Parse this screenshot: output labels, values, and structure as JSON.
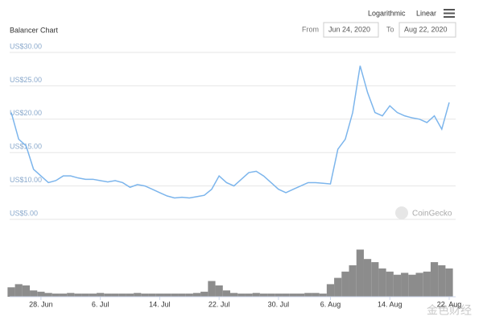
{
  "header": {
    "title": "Balancer Chart",
    "scale_options": [
      "Logarithmic",
      "Linear"
    ],
    "from_label": "From",
    "from_date": "Jun 24, 2020",
    "to_label": "To",
    "to_date": "Aug 22, 2020"
  },
  "watermarks": [
    "CoinGecko",
    "金色财经"
  ],
  "chart_data": [
    {
      "type": "line",
      "color": "#7cb5ec",
      "grid": true,
      "x": [
        "24. Jun",
        "25. Jun",
        "26. Jun",
        "27. Jun",
        "28. Jun",
        "29. Jun",
        "30. Jun",
        "1. Jul",
        "2. Jul",
        "3. Jul",
        "4. Jul",
        "5. Jul",
        "6. Jul",
        "7. Jul",
        "8. Jul",
        "9. Jul",
        "10. Jul",
        "11. Jul",
        "12. Jul",
        "13. Jul",
        "14. Jul",
        "15. Jul",
        "16. Jul",
        "17. Jul",
        "18. Jul",
        "19. Jul",
        "20. Jul",
        "21. Jul",
        "22. Jul",
        "23. Jul",
        "24. Jul",
        "25. Jul",
        "26. Jul",
        "27. Jul",
        "28. Jul",
        "29. Jul",
        "30. Jul",
        "31. Jul",
        "1. Aug",
        "2. Aug",
        "3. Aug",
        "4. Aug",
        "5. Aug",
        "6. Aug",
        "7. Aug",
        "8. Aug",
        "9. Aug",
        "10. Aug",
        "11. Aug",
        "12. Aug",
        "13. Aug",
        "14. Aug",
        "15. Aug",
        "16. Aug",
        "17. Aug",
        "18. Aug",
        "19. Aug",
        "20. Aug",
        "21. Aug",
        "22. Aug"
      ],
      "values": [
        21,
        17,
        16,
        12.5,
        11.5,
        10.5,
        10.8,
        11.5,
        11.5,
        11.2,
        11,
        11,
        10.8,
        10.6,
        10.8,
        10.5,
        9.8,
        10.2,
        10,
        9.5,
        9,
        8.5,
        8.2,
        8.3,
        8.2,
        8.4,
        8.6,
        9.5,
        11.5,
        10.5,
        10,
        11,
        12,
        12.2,
        11.5,
        10.5,
        9.5,
        9,
        9.5,
        10,
        10.5,
        10.5,
        10.4,
        10.3,
        15.5,
        17,
        21,
        28,
        24,
        21,
        20.5,
        22,
        21,
        20.5,
        20.2,
        20,
        19.5,
        20.5,
        18.5,
        22.5
      ],
      "ylim": [
        5,
        30
      ],
      "yticks": [
        {
          "value": 5,
          "label": "US$5.00"
        },
        {
          "value": 10,
          "label": "US$10.00"
        },
        {
          "value": 15,
          "label": "US$15.00"
        },
        {
          "value": 20,
          "label": "US$20.00"
        },
        {
          "value": 25,
          "label": "US$25.00"
        },
        {
          "value": 30,
          "label": "US$30.00"
        }
      ]
    },
    {
      "type": "bar",
      "color": "#8c8c8c",
      "ylim": [
        0,
        100
      ],
      "values": [
        15,
        20,
        18,
        10,
        8,
        6,
        5,
        5,
        6,
        5,
        5,
        5,
        6,
        5,
        5,
        5,
        5,
        6,
        5,
        5,
        5,
        5,
        5,
        5,
        5,
        6,
        8,
        25,
        18,
        10,
        6,
        5,
        5,
        6,
        5,
        5,
        5,
        5,
        5,
        5,
        6,
        6,
        5,
        20,
        30,
        40,
        50,
        75,
        60,
        55,
        45,
        40,
        35,
        38,
        35,
        38,
        40,
        55,
        50,
        45
      ],
      "xticks": [
        "28. Jun",
        "6. Jul",
        "14. Jul",
        "22. Jul",
        "30. Jul",
        "6. Aug",
        "14. Aug",
        "22. Aug"
      ]
    }
  ]
}
